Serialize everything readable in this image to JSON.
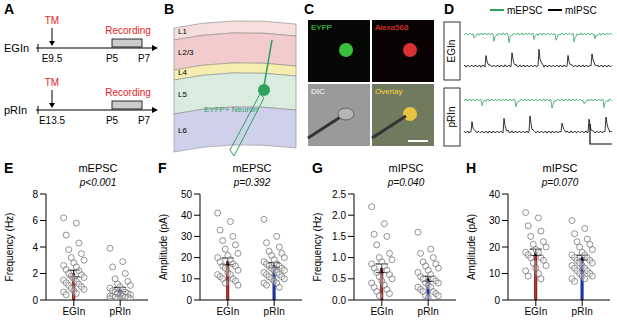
{
  "panel_a": {
    "panel": "A",
    "rows": [
      {
        "name": "EGIn",
        "tm": "TM",
        "tm_time": "E9.5",
        "recording": "Recording",
        "start": "P5",
        "end": "P7"
      },
      {
        "name": "pRIn",
        "tm": "TM",
        "tm_time": "E13.5",
        "recording": "Recording",
        "start": "P5",
        "end": "P7"
      }
    ]
  },
  "panel_b": {
    "panel": "B",
    "layers": [
      "L1",
      "L2/3",
      "L4",
      "L5",
      "L6"
    ],
    "cell_label": "EYFP+ Neuron"
  },
  "panel_c": {
    "panel": "C",
    "images": [
      "EYFP",
      "Alexa568",
      "DIC",
      "Overlay"
    ]
  },
  "panel_d": {
    "panel": "D",
    "legend": [
      {
        "name": "mEPSC",
        "color": "#2ca25f"
      },
      {
        "name": "mIPSC",
        "color": "#000000"
      }
    ],
    "rows": [
      "EGIn",
      "pRIn"
    ]
  },
  "chart_data": [
    {
      "type": "bar",
      "panel": "E",
      "title": "mEPSC",
      "ylabel": "Frequency (Hz)",
      "annotations": [
        "p<0.001"
      ],
      "categories": [
        "EGIn",
        "pRIn"
      ],
      "values": [
        2.0,
        0.8
      ],
      "errors": [
        0.25,
        0.15
      ],
      "colors": [
        "#e8231f",
        "#1c3fff"
      ],
      "points": [
        [
          6.2,
          5.8,
          4.9,
          4.3,
          3.8,
          3.5,
          3.2,
          3.0,
          2.8,
          2.6,
          2.5,
          2.3,
          2.2,
          2.0,
          1.9,
          1.8,
          1.7,
          1.6,
          1.5,
          1.4,
          1.3,
          1.2,
          1.1,
          1.0,
          0.9,
          0.8,
          0.7,
          0.6,
          0.5,
          0.4
        ],
        [
          3.9,
          2.9,
          2.5,
          2.0,
          1.6,
          1.4,
          1.2,
          1.1,
          1.0,
          0.9,
          0.8,
          0.7,
          0.6,
          0.6,
          0.5,
          0.5,
          0.4,
          0.4,
          0.3,
          0.3,
          0.3,
          0.2,
          0.2,
          0.2,
          0.1,
          0.1,
          0.1,
          0.1
        ]
      ],
      "ylim": [
        0,
        8
      ],
      "yticks": [
        0,
        2,
        4,
        6,
        8
      ]
    },
    {
      "type": "bar",
      "panel": "F",
      "title": "mEPSC",
      "ylabel": "Amplitude (pA)",
      "annotations": [
        "p=0.392"
      ],
      "categories": [
        "EGIn",
        "pRIn"
      ],
      "values": [
        18.2,
        16.5
      ],
      "errors": [
        1.6,
        1.1
      ],
      "colors": [
        "#e8231f",
        "#1c3fff"
      ],
      "points": [
        [
          41,
          37,
          33,
          30,
          28,
          26,
          24,
          22,
          21,
          20,
          19,
          18,
          17,
          16,
          16,
          15,
          14,
          13,
          12,
          12,
          11,
          10,
          10,
          9,
          8,
          7
        ],
        [
          38,
          30,
          27,
          25,
          23,
          22,
          21,
          20,
          19,
          18,
          17,
          17,
          16,
          16,
          15,
          15,
          14,
          14,
          13,
          13,
          12,
          12,
          11,
          11,
          10,
          10,
          9,
          8,
          8,
          7,
          6
        ]
      ],
      "ylim": [
        0,
        50
      ],
      "yticks": [
        0,
        10,
        20,
        30,
        40,
        50
      ]
    },
    {
      "type": "bar",
      "panel": "G",
      "title": "mIPSC",
      "ylabel": "Frequency (Hz)",
      "annotations": [
        "p=0.040"
      ],
      "categories": [
        "EGIn",
        "pRIn"
      ],
      "values": [
        0.75,
        0.5
      ],
      "errors": [
        0.1,
        0.06
      ],
      "colors": [
        "#e8231f",
        "#1c3fff"
      ],
      "points": [
        [
          2.2,
          1.8,
          1.55,
          1.5,
          1.3,
          1.1,
          1.0,
          0.95,
          0.9,
          0.85,
          0.8,
          0.75,
          0.7,
          0.65,
          0.6,
          0.55,
          0.5,
          0.45,
          0.4,
          0.35,
          0.3,
          0.25,
          0.2,
          0.15,
          0.1
        ],
        [
          1.6,
          1.2,
          1.1,
          1.0,
          0.9,
          0.85,
          0.8,
          0.75,
          0.7,
          0.65,
          0.6,
          0.55,
          0.5,
          0.5,
          0.45,
          0.4,
          0.4,
          0.35,
          0.3,
          0.3,
          0.25,
          0.2,
          0.2,
          0.15,
          0.1,
          0.1,
          0.05
        ]
      ],
      "ylim": [
        0,
        2.5
      ],
      "yticks": [
        {
          "value": 0,
          "label": "0.0"
        },
        0.5,
        {
          "value": 1,
          "label": "1.0"
        },
        1.5,
        {
          "value": 2,
          "label": "2.0"
        },
        2.5
      ]
    },
    {
      "type": "bar",
      "panel": "H",
      "title": "mIPSC",
      "ylabel": "Amplitude (pA)",
      "annotations": [
        "p=0.070"
      ],
      "categories": [
        "EGIn",
        "pRIn"
      ],
      "values": [
        18.0,
        16.0
      ],
      "errors": [
        1.2,
        0.9
      ],
      "colors": [
        "#e8231f",
        "#1c3fff"
      ],
      "points": [
        [
          33,
          31,
          28,
          26,
          24,
          22,
          21,
          20,
          19,
          18,
          18,
          17,
          16,
          16,
          15,
          14,
          13,
          12,
          11,
          10,
          9,
          8
        ],
        [
          30,
          27,
          25,
          23,
          22,
          21,
          20,
          19,
          18,
          17,
          17,
          16,
          16,
          15,
          15,
          14,
          14,
          13,
          13,
          12,
          12,
          11,
          11,
          10,
          10,
          9,
          9,
          8,
          8,
          7
        ]
      ],
      "ylim": [
        0,
        40
      ],
      "yticks": [
        0,
        10,
        20,
        30,
        40
      ]
    }
  ]
}
